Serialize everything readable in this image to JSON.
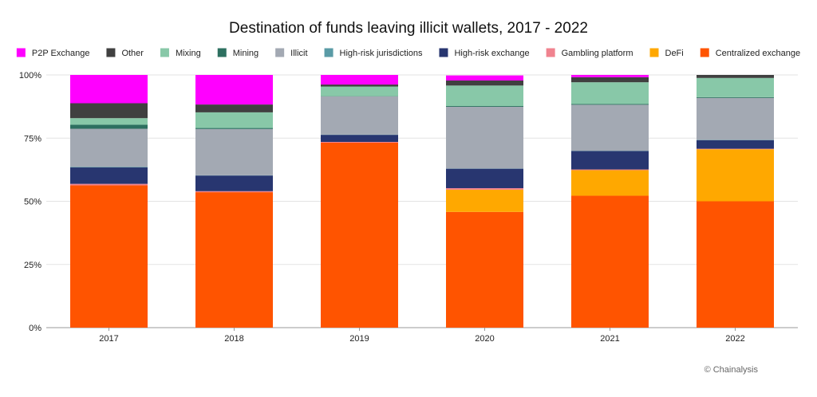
{
  "chart_data": {
    "type": "bar",
    "stacked": true,
    "title": "Destination of funds leaving illicit wallets, 2017 - 2022",
    "xlabel": "",
    "ylabel": "",
    "ylim": [
      0,
      100
    ],
    "y_ticks": [
      0,
      25,
      50,
      75,
      100
    ],
    "y_tick_labels": [
      "0%",
      "25%",
      "50%",
      "75%",
      "100%"
    ],
    "grid": true,
    "legend_position": "top",
    "categories": [
      "2017",
      "2018",
      "2019",
      "2020",
      "2021",
      "2022"
    ],
    "series": [
      {
        "name": "Centralized exchange",
        "color": "#ff5400",
        "values": [
          56.3,
          53.6,
          73.2,
          45.8,
          52.2,
          50.0
        ]
      },
      {
        "name": "DeFi",
        "color": "#ffa800",
        "values": [
          0.0,
          0.0,
          0.0,
          8.8,
          10.1,
          20.6
        ]
      },
      {
        "name": "Gambling platform",
        "color": "#f0838f",
        "values": [
          0.6,
          0.4,
          0.3,
          0.6,
          0.3,
          0.2
        ]
      },
      {
        "name": "High-risk exchange",
        "color": "#283670",
        "values": [
          6.5,
          6.2,
          2.8,
          7.7,
          7.3,
          3.4
        ]
      },
      {
        "name": "High-risk jurisdictions",
        "color": "#5a9ba6",
        "values": [
          0.2,
          0.1,
          0.1,
          0.1,
          0.1,
          0.1
        ]
      },
      {
        "name": "Illicit",
        "color": "#a3a9b3",
        "values": [
          15.1,
          18.3,
          15.1,
          24.4,
          18.2,
          16.6
        ]
      },
      {
        "name": "Mining",
        "color": "#2d7060",
        "values": [
          1.6,
          0.4,
          0.1,
          0.3,
          0.3,
          0.3
        ]
      },
      {
        "name": "Mixing",
        "color": "#88c8a8",
        "values": [
          2.6,
          6.2,
          3.8,
          8.1,
          8.6,
          7.6
        ]
      },
      {
        "name": "Other",
        "color": "#404040",
        "values": [
          5.9,
          3.1,
          0.8,
          2.0,
          2.0,
          1.2
        ]
      },
      {
        "name": "P2P Exchange",
        "color": "#ff00ff",
        "values": [
          11.2,
          11.7,
          3.8,
          2.0,
          0.9,
          0.0
        ]
      }
    ],
    "legend_order": [
      "P2P Exchange",
      "Other",
      "Mixing",
      "Mining",
      "Illicit",
      "High-risk jurisdictions",
      "High-risk exchange",
      "Gambling platform",
      "DeFi",
      "Centralized exchange"
    ],
    "source_note": "© Chainalysis"
  }
}
